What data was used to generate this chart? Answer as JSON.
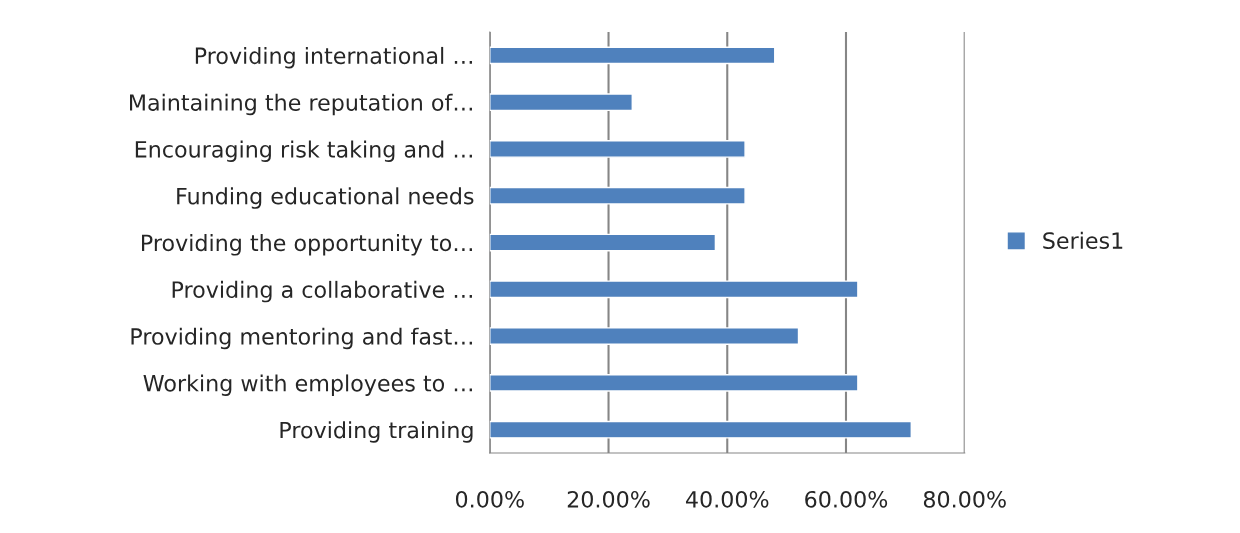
{
  "chart_data": {
    "type": "bar",
    "orientation": "horizontal",
    "categories": [
      "Providing international …",
      "Maintaining the reputation of…",
      "Encouraging risk taking and …",
      "Funding educational needs",
      "Providing the opportunity to…",
      "Providing a collaborative …",
      "Providing mentoring and fast…",
      "Working with employees to …",
      "Providing training"
    ],
    "series": [
      {
        "name": "Series1",
        "color": "#4f81bd",
        "values": [
          0.48,
          0.24,
          0.43,
          0.43,
          0.38,
          0.62,
          0.52,
          0.62,
          0.71
        ]
      }
    ],
    "xlim": [
      0,
      0.8
    ],
    "xticks": [
      {
        "value": 0,
        "label": "0.00%"
      },
      {
        "value": 0.2,
        "label": "20.00%"
      },
      {
        "value": 0.4,
        "label": "40.00%"
      },
      {
        "value": 0.6,
        "label": "60.00%"
      },
      {
        "value": 0.8,
        "label": "80.00%"
      }
    ],
    "grid": "x",
    "legend": "right"
  }
}
